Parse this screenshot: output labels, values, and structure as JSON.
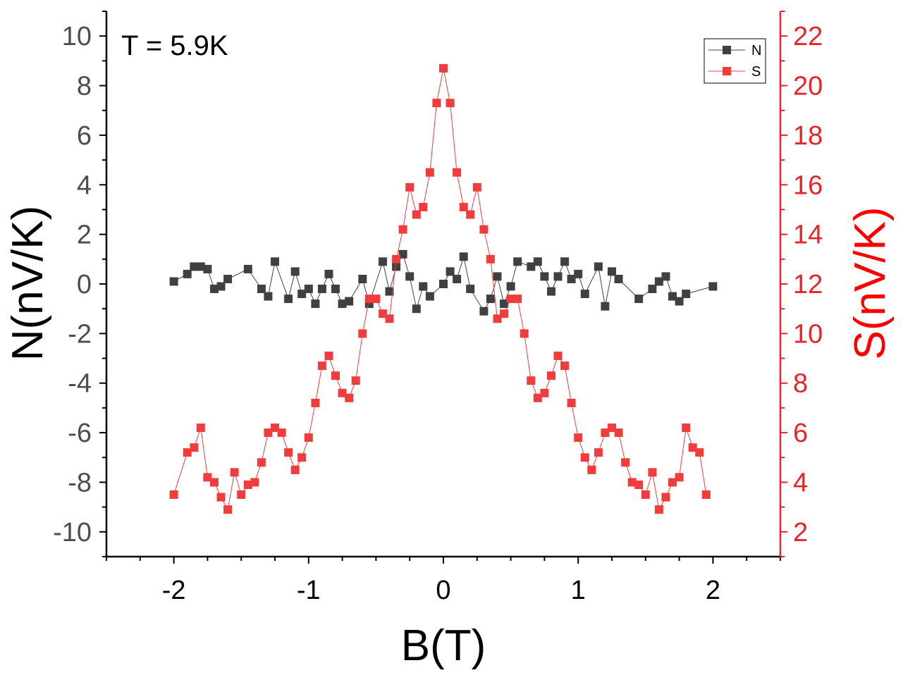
{
  "chart_data": {
    "type": "scatter",
    "title": "",
    "annotation": "T = 5.9K",
    "xlabel": "B(T)",
    "ylabel_left": "N(nV/K)",
    "ylabel_right": "S(nV/K)",
    "xlim": [
      -2.5,
      2.5
    ],
    "ylim_left": [
      -11,
      11
    ],
    "ylim_right": [
      1,
      23
    ],
    "x_ticks": [
      -2,
      -1,
      0,
      1,
      2
    ],
    "x_tick_labels": [
      "-2",
      "-1",
      "0",
      "1",
      "2"
    ],
    "y_left_ticks": [
      -10,
      -8,
      -6,
      -4,
      -2,
      0,
      2,
      4,
      6,
      8,
      10
    ],
    "y_left_tick_labels": [
      "-10",
      "-8",
      "-6",
      "-4",
      "-2",
      "0",
      "2",
      "4",
      "6",
      "8",
      "10"
    ],
    "y_right_ticks": [
      2,
      4,
      6,
      8,
      10,
      12,
      14,
      16,
      18,
      20,
      22
    ],
    "y_right_tick_labels": [
      "2",
      "4",
      "6",
      "8",
      "10",
      "12",
      "14",
      "16",
      "18",
      "20",
      "22"
    ],
    "legend": [
      "N",
      "S"
    ],
    "legend_position": "top-right",
    "grid": false,
    "colors": {
      "N": "#404040",
      "S": "#f03c3c",
      "right_axis": "#e8242a"
    },
    "x": [
      -2,
      -1.9,
      -1.85,
      -1.8,
      -1.75,
      -1.7,
      -1.65,
      -1.6,
      -1.55,
      -1.5,
      -1.45,
      -1.4,
      -1.35,
      -1.3,
      -1.25,
      -1.2,
      -1.15,
      -1.1,
      -1.05,
      -1,
      -0.95,
      -0.9,
      -0.85,
      -0.8,
      -0.75,
      -0.7,
      -0.65,
      -0.6,
      -0.55,
      -0.5,
      -0.45,
      -0.4,
      -0.35,
      -0.3,
      -0.25,
      -0.2,
      -0.15,
      -0.1,
      -0.05,
      0,
      0.05,
      0.1,
      0.15,
      0.2,
      0.25,
      0.3,
      0.35,
      0.4,
      0.45,
      0.5,
      0.55,
      0.6,
      0.65,
      0.7,
      0.75,
      0.8,
      0.85,
      0.9,
      0.95,
      1,
      1.05,
      1.1,
      1.15,
      1.2,
      1.25,
      1.3,
      1.35,
      1.4,
      1.45,
      1.5,
      1.55,
      1.6,
      1.65,
      1.7,
      1.75,
      1.8,
      1.85,
      1.9,
      1.95,
      2
    ],
    "series": [
      {
        "name": "N",
        "axis": "left",
        "marker": "square",
        "values": [
          0.1,
          0.4,
          0.7,
          0.7,
          0.6,
          -0.2,
          -0.1,
          0.2,
          null,
          null,
          0.6,
          null,
          -0.2,
          -0.5,
          0.9,
          null,
          -0.6,
          0.5,
          -0.4,
          -0.2,
          -0.8,
          -0.2,
          0.4,
          -0.2,
          -0.8,
          -0.7,
          null,
          0.2,
          -0.8,
          null,
          0.9,
          -0.3,
          0.7,
          1.2,
          0.3,
          -1.0,
          -0.1,
          -0.5,
          null,
          0.0,
          0.5,
          0.2,
          1.1,
          -0.2,
          null,
          -1.1,
          -0.6,
          0.3,
          -0.8,
          -0.1,
          0.9,
          null,
          0.7,
          0.9,
          0.3,
          -0.3,
          0.3,
          0.9,
          0.2,
          0.4,
          -0.4,
          null,
          0.7,
          -0.9,
          0.5,
          0.2,
          null,
          null,
          -0.6,
          null,
          -0.2,
          0.1,
          0.3,
          -0.5,
          -0.7,
          -0.4,
          null,
          null,
          null,
          -0.1
        ]
      },
      {
        "name": "S",
        "axis": "right",
        "marker": "square",
        "values": [
          3.5,
          5.2,
          5.4,
          6.2,
          4.2,
          4.0,
          3.4,
          2.9,
          4.4,
          3.5,
          3.9,
          4.0,
          4.8,
          6.0,
          6.2,
          6.0,
          5.2,
          4.5,
          5.0,
          5.8,
          7.2,
          8.7,
          9.1,
          8.3,
          7.6,
          7.4,
          8.1,
          10.0,
          11.4,
          11.4,
          10.8,
          10.6,
          13.0,
          14.2,
          15.9,
          14.8,
          15.1,
          16.5,
          19.3,
          20.7,
          19.3,
          16.5,
          15.1,
          14.8,
          15.9,
          14.2,
          13.0,
          10.6,
          10.8,
          11.4,
          11.4,
          10.0,
          8.1,
          7.4,
          7.6,
          8.3,
          9.1,
          8.7,
          7.2,
          5.8,
          5.0,
          4.5,
          5.2,
          6.0,
          6.2,
          6.0,
          4.8,
          4.0,
          3.9,
          3.5,
          4.4,
          2.9,
          3.4,
          4.0,
          4.2,
          6.2,
          5.4,
          5.2,
          3.5,
          null
        ]
      }
    ]
  }
}
